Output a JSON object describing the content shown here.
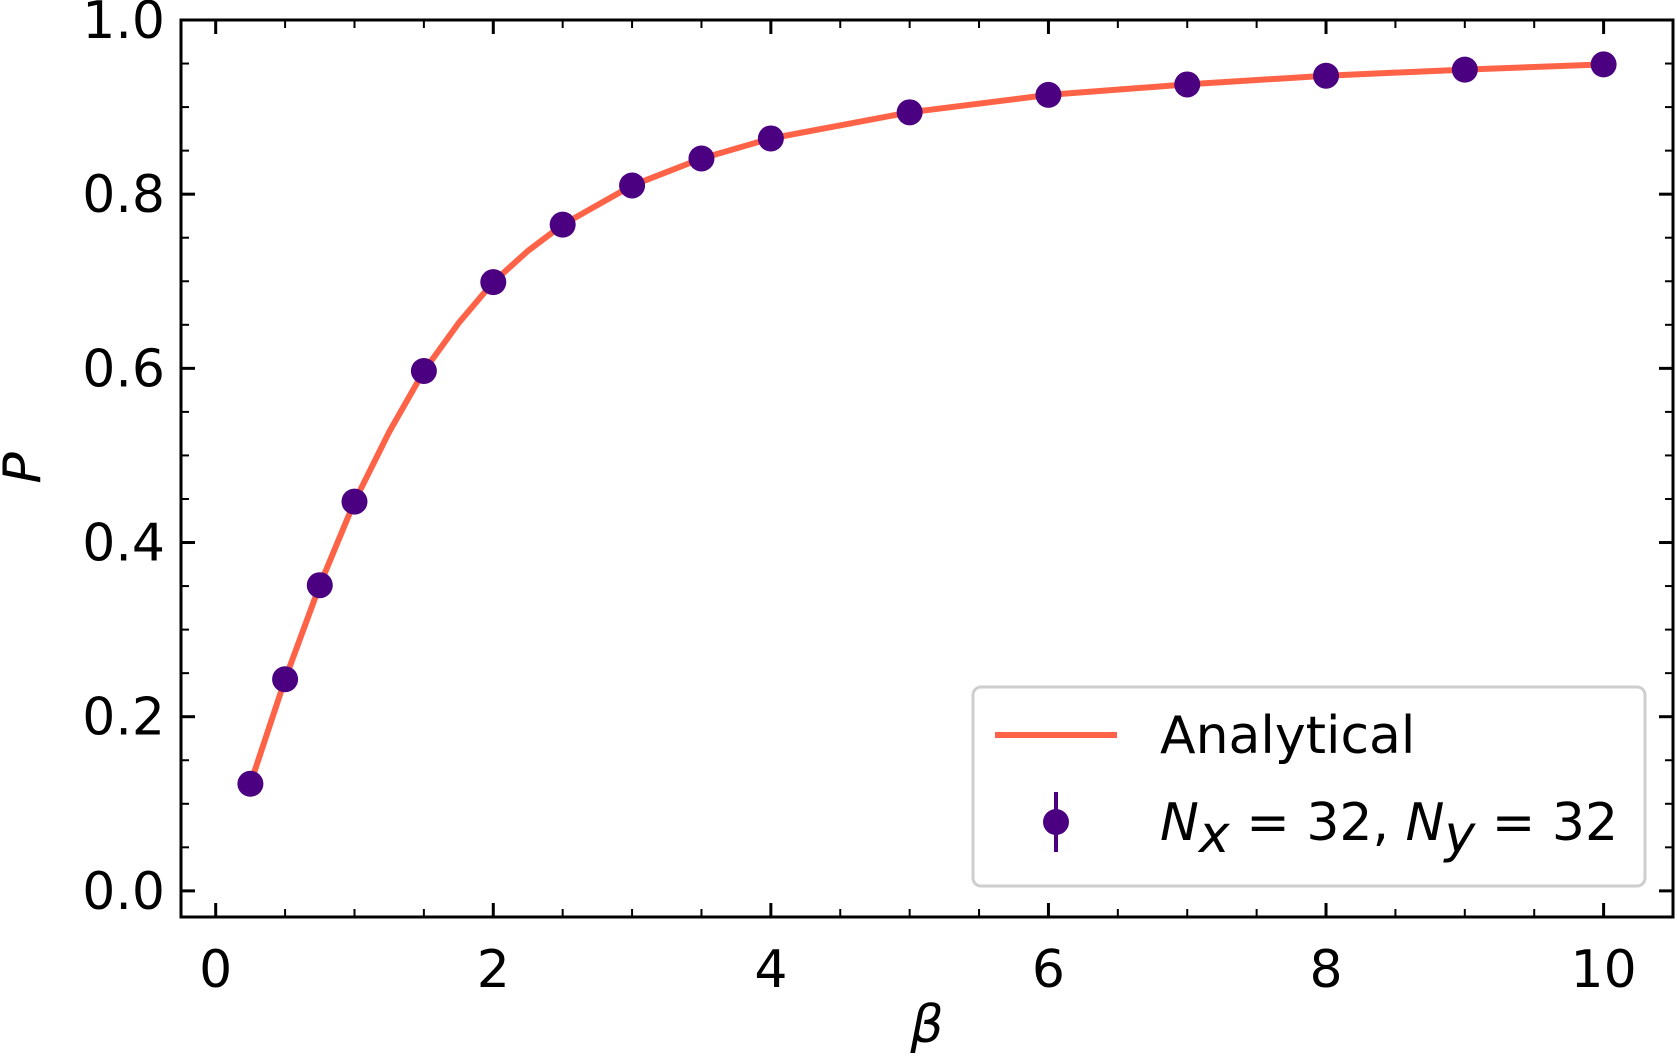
{
  "chart_data": {
    "type": "line",
    "title": "",
    "xlabel": "β",
    "ylabel": "P",
    "xlim": [
      -0.25,
      10.5
    ],
    "ylim": [
      -0.03,
      1.0
    ],
    "x_ticks": [
      0,
      2,
      4,
      6,
      8,
      10
    ],
    "x_tick_labels": [
      "0",
      "2",
      "4",
      "6",
      "8",
      "10"
    ],
    "y_ticks": [
      0.0,
      0.2,
      0.4,
      0.6,
      0.8,
      1.0
    ],
    "y_tick_labels": [
      "0.0",
      "0.2",
      "0.4",
      "0.6",
      "0.8",
      "1.0"
    ],
    "grid": false,
    "legend_position": "bottom-right",
    "colors": {
      "analytical": "#ff6347",
      "data": "#4b0082"
    },
    "series": [
      {
        "name": "Analytical",
        "kind": "line",
        "x": [
          0.25,
          0.5,
          0.75,
          1.0,
          1.25,
          1.5,
          1.75,
          2.0,
          2.25,
          2.5,
          3.0,
          3.5,
          4.0,
          5.0,
          6.0,
          7.0,
          8.0,
          9.0,
          10.0
        ],
        "y": [
          0.123,
          0.243,
          0.351,
          0.447,
          0.527,
          0.597,
          0.652,
          0.699,
          0.735,
          0.765,
          0.81,
          0.841,
          0.864,
          0.894,
          0.914,
          0.926,
          0.936,
          0.943,
          0.949
        ]
      },
      {
        "name": "N_x = 32, N_y = 32",
        "kind": "errorbar",
        "x": [
          0.25,
          0.5,
          0.75,
          1.0,
          1.5,
          2.0,
          2.5,
          3.0,
          3.5,
          4.0,
          5.0,
          6.0,
          7.0,
          8.0,
          9.0,
          10.0
        ],
        "y": [
          0.123,
          0.243,
          0.351,
          0.447,
          0.597,
          0.699,
          0.765,
          0.81,
          0.841,
          0.864,
          0.894,
          0.914,
          0.926,
          0.936,
          0.943,
          0.949
        ]
      }
    ],
    "legend": {
      "analytical_label": "Analytical",
      "data_label": {
        "n1": "N",
        "sub1": "x",
        "eq1": " = 32, ",
        "n2": "N",
        "sub2": "y",
        "eq2": " = 32"
      }
    }
  }
}
